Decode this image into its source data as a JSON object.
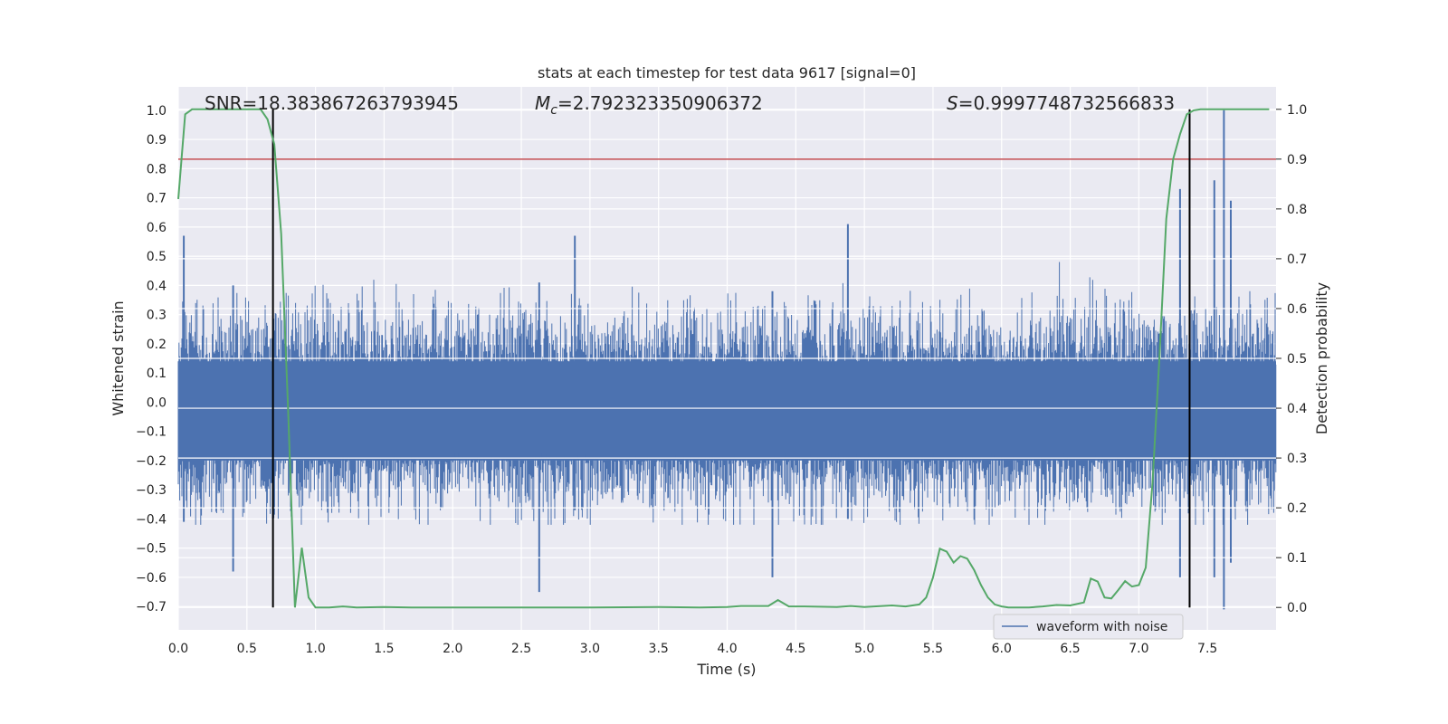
{
  "chart_data": {
    "type": "line",
    "title": "stats at each timestep for test data 9617 [signal=0]",
    "xlabel": "Time (s)",
    "ylabel_left": "Whitened strain",
    "ylabel_right": "Detection probability",
    "xlim": [
      0.0,
      8.0
    ],
    "ylim_left": [
      -0.78,
      1.08
    ],
    "ylim_right": [
      -0.045,
      1.045
    ],
    "x_ticks": [
      "0.0",
      "0.5",
      "1.0",
      "1.5",
      "2.0",
      "2.5",
      "3.0",
      "3.5",
      "4.0",
      "4.5",
      "5.0",
      "5.5",
      "6.0",
      "6.5",
      "7.0",
      "7.5"
    ],
    "y_left_ticks": [
      "-0.7",
      "-0.6",
      "-0.5",
      "-0.4",
      "-0.3",
      "-0.2",
      "-0.1",
      "0.0",
      "0.1",
      "0.2",
      "0.3",
      "0.4",
      "0.5",
      "0.6",
      "0.7",
      "0.8",
      "0.9",
      "1.0"
    ],
    "y_right_ticks": [
      "0.0",
      "0.1",
      "0.2",
      "0.3",
      "0.4",
      "0.5",
      "0.6",
      "0.7",
      "0.8",
      "0.9",
      "1.0"
    ],
    "grid": true,
    "legend_position": "lower-right",
    "annotations": {
      "snr": "SNR=18.383867263793945",
      "mc_symbol": "M",
      "mc_sub": "c",
      "mc_value": "=2.792323350906372",
      "s_symbol": "S",
      "s_value": "=0.9997748732566833"
    },
    "threshold_right": 0.9,
    "vertical_lines_x": [
      0.69,
      7.37
    ],
    "series": [
      {
        "name": "waveform with noise",
        "axis": "left",
        "style": "noise-band",
        "color": "#4c72b0",
        "band_core": [
          -0.2,
          0.14
        ],
        "typical_extent": [
          -0.42,
          0.48
        ],
        "peak_max": 1.0,
        "peak_min": -0.71
      },
      {
        "axis": "right",
        "color": "#55a868",
        "x": [
          0.0,
          0.05,
          0.1,
          0.2,
          0.3,
          0.4,
          0.5,
          0.6,
          0.65,
          0.7,
          0.75,
          0.8,
          0.85,
          0.9,
          0.95,
          1.0,
          1.1,
          1.2,
          1.3,
          1.5,
          1.7,
          2.0,
          2.5,
          3.0,
          3.5,
          3.8,
          4.0,
          4.1,
          4.2,
          4.3,
          4.37,
          4.45,
          4.55,
          4.8,
          4.9,
          5.0,
          5.2,
          5.3,
          5.4,
          5.45,
          5.5,
          5.55,
          5.6,
          5.65,
          5.7,
          5.75,
          5.8,
          5.85,
          5.9,
          5.95,
          6.0,
          6.05,
          6.1,
          6.2,
          6.3,
          6.4,
          6.5,
          6.6,
          6.65,
          6.7,
          6.75,
          6.8,
          6.85,
          6.9,
          6.95,
          7.0,
          7.05,
          7.1,
          7.15,
          7.2,
          7.25,
          7.3,
          7.35,
          7.4,
          7.45,
          7.5,
          7.55,
          7.6,
          7.7,
          7.8,
          7.95
        ],
        "y": [
          0.82,
          0.99,
          1.0,
          1.0,
          1.0,
          1.0,
          1.0,
          1.0,
          0.98,
          0.93,
          0.75,
          0.4,
          0.0,
          0.12,
          0.02,
          0.0,
          0.0,
          0.002,
          0.0,
          0.001,
          0.0,
          0.0,
          0.0,
          0.0,
          0.001,
          0.0,
          0.001,
          0.003,
          0.003,
          0.003,
          0.015,
          0.002,
          0.002,
          0.001,
          0.003,
          0.001,
          0.004,
          0.002,
          0.006,
          0.02,
          0.06,
          0.118,
          0.112,
          0.09,
          0.103,
          0.098,
          0.075,
          0.045,
          0.02,
          0.006,
          0.002,
          0.0,
          0.0,
          0.0,
          0.002,
          0.005,
          0.004,
          0.01,
          0.058,
          0.052,
          0.02,
          0.018,
          0.035,
          0.053,
          0.042,
          0.045,
          0.08,
          0.25,
          0.5,
          0.78,
          0.9,
          0.95,
          0.99,
          0.998,
          1.0,
          1.0,
          1.0,
          1.0,
          1.0,
          1.0,
          1.0
        ]
      }
    ]
  }
}
